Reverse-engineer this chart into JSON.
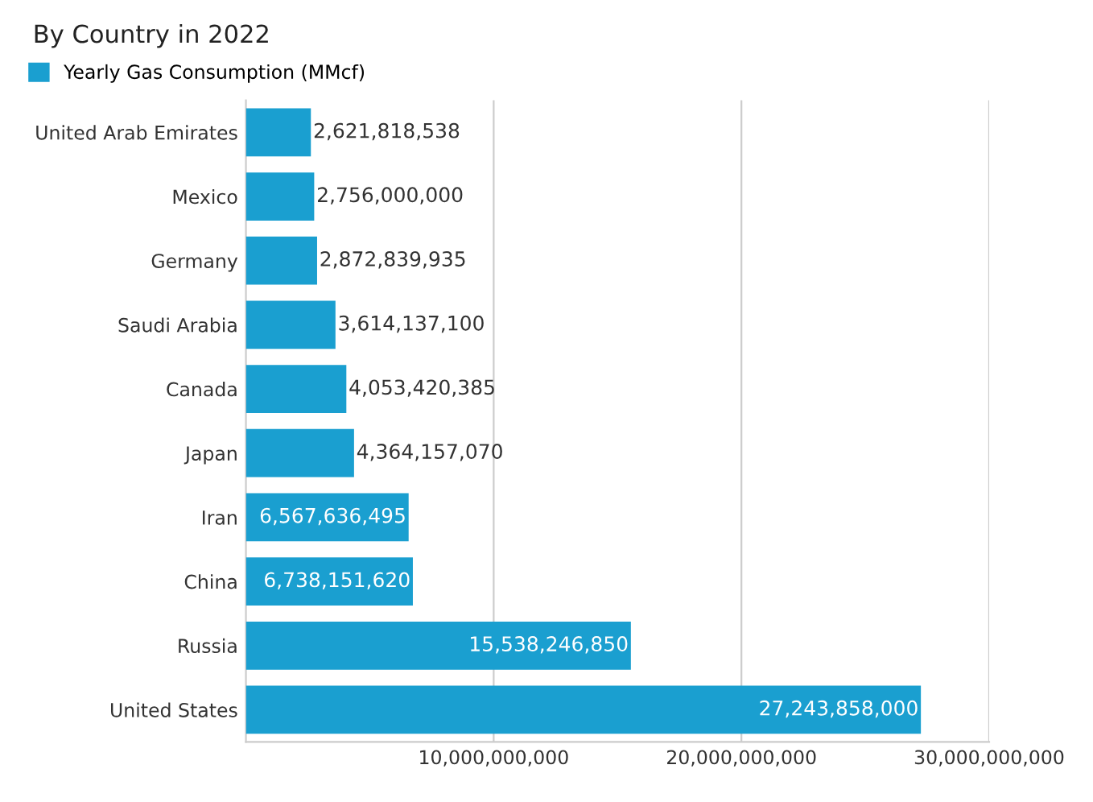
{
  "chart_data": {
    "type": "bar",
    "orientation": "horizontal",
    "title": "By Country in 2022",
    "categories": [
      "United Arab Emirates",
      "Mexico",
      "Germany",
      "Saudi Arabia",
      "Canada",
      "Japan",
      "Iran",
      "China",
      "Russia",
      "United States"
    ],
    "series": [
      {
        "name": "Yearly Gas Consumption (MMcf)",
        "color": "#1a9fd0",
        "values": [
          2621818538,
          2756000000,
          2872839935,
          3614137100,
          4053420385,
          4364157070,
          6567636495,
          6738151620,
          15538246850,
          27243858000
        ],
        "value_labels": [
          "2,621,818,538",
          "2,756,000,000",
          "2,872,839,935",
          "3,614,137,100",
          "4,053,420,385",
          "4,364,157,070",
          "6,567,636,495",
          "6,738,151,620",
          "15,538,246,850",
          "27,243,858,000"
        ]
      }
    ],
    "xlim": [
      0,
      30000000000
    ],
    "xticks": [
      {
        "value": 10000000000,
        "label": "10,000,000,000"
      },
      {
        "value": 20000000000,
        "label": "20,000,000,000"
      },
      {
        "value": 30000000000,
        "label": "30,000,000,000"
      }
    ],
    "grid": "x",
    "legend": "top left"
  }
}
